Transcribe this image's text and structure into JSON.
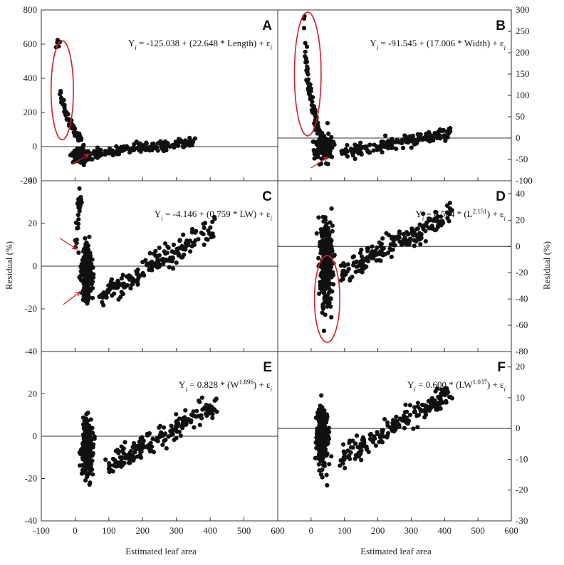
{
  "figure": {
    "x_axis_label": "Estimated leaf area",
    "y_axis_label": "Residual (%)"
  },
  "chart_data": [
    {
      "type": "scatter",
      "panel": "A",
      "equation": {
        "pre": "Y",
        "sub": "i",
        "mid": " = -125.038 + (22.648 * Length) + ε",
        "sup": "",
        "post": "",
        "tail": "i"
      },
      "xlim": [
        -100,
        600
      ],
      "ylim": [
        -200,
        800
      ],
      "x_ticks": [
        "-100",
        "0",
        "100",
        "200",
        "300",
        "400",
        "500"
      ],
      "y_ticks": [
        "-200",
        "0",
        "200",
        "400",
        "600",
        "800"
      ],
      "y_tick_values": [
        -200,
        0,
        200,
        400,
        600,
        800
      ],
      "y_axis_side": "left",
      "show_x_tick_labels": false,
      "annotations": [
        {
          "kind": "ellipse",
          "cx": -38,
          "cy": 330,
          "rx": 33,
          "ry": 290
        },
        {
          "kind": "arrow",
          "from": [
            -10,
            -105
          ],
          "to": [
            40,
            -45
          ]
        }
      ],
      "clusters": [
        {
          "x": [
            -50,
            -50
          ],
          "y": [
            580,
            595
          ],
          "n": 5
        },
        {
          "x": [
            -45,
            15
          ],
          "y": [
            40,
            390
          ],
          "n": 60,
          "curve": true
        },
        {
          "x": 20,
          "y": -50,
          "sx": 18,
          "sy": 28,
          "n": 140
        },
        {
          "x": [
            60,
            350
          ],
          "y": [
            -40,
            25
          ],
          "n": 160,
          "band": 20
        }
      ]
    },
    {
      "type": "scatter",
      "panel": "B",
      "equation": {
        "pre": "Y",
        "sub": "i",
        "mid": " = -91.545 + (17.006 * Width) + ε",
        "sup": "",
        "post": "",
        "tail": "i"
      },
      "xlim": [
        -100,
        600
      ],
      "ylim": [
        -100,
        300
      ],
      "x_ticks": [
        "0",
        "100",
        "200",
        "300",
        "400",
        "500",
        "600"
      ],
      "y_ticks": [
        "-100",
        "-50",
        "0",
        "50",
        "100",
        "150",
        "200",
        "250",
        "300"
      ],
      "y_tick_values": [
        -100,
        -50,
        0,
        50,
        100,
        150,
        200,
        250,
        300
      ],
      "y_axis_side": "right",
      "show_x_tick_labels": false,
      "annotations": [
        {
          "kind": "ellipse",
          "cx": -10,
          "cy": 150,
          "rx": 40,
          "ry": 145
        },
        {
          "kind": "arrow",
          "from": [
            0,
            -70
          ],
          "to": [
            50,
            -45
          ]
        }
      ],
      "clusters": [
        {
          "x": [
            -20,
            -18
          ],
          "y": [
            265,
            280
          ],
          "n": 3
        },
        {
          "x": [
            -18,
            25
          ],
          "y": [
            10,
            245
          ],
          "n": 70,
          "curve": true
        },
        {
          "x": 40,
          "y": -20,
          "sx": 20,
          "sy": 22,
          "n": 130
        },
        {
          "x": [
            90,
            420
          ],
          "y": [
            -35,
            12
          ],
          "n": 170,
          "band": 10
        }
      ]
    },
    {
      "type": "scatter",
      "panel": "C",
      "equation": {
        "pre": "Y",
        "sub": "i",
        "mid": " = -4.146 + (0.759 * LW) + ε",
        "sup": "",
        "post": "",
        "tail": "i"
      },
      "xlim": [
        -100,
        600
      ],
      "ylim": [
        -40,
        40
      ],
      "x_ticks": [
        "-100",
        "0",
        "100",
        "200",
        "300",
        "400",
        "500"
      ],
      "y_ticks": [
        "-40",
        "-20",
        "0",
        "20",
        "40"
      ],
      "y_tick_values": [
        -40,
        -20,
        0,
        20,
        40
      ],
      "y_axis_side": "left",
      "show_x_tick_labels": false,
      "annotations": [
        {
          "kind": "arrow",
          "from": [
            -45,
            13
          ],
          "to": [
            5,
            8
          ]
        },
        {
          "kind": "arrow",
          "from": [
            -35,
            -18
          ],
          "to": [
            15,
            -12
          ]
        }
      ],
      "clusters": [
        {
          "x": [
            2,
            15
          ],
          "y": [
            10,
            36
          ],
          "n": 25
        },
        {
          "x": 35,
          "y": -3,
          "sx": 12,
          "sy": 9,
          "n": 240
        },
        {
          "x": [
            70,
            420
          ],
          "y": [
            -15,
            18
          ],
          "n": 190,
          "band": 0
        }
      ]
    },
    {
      "type": "scatter",
      "panel": "D",
      "equation": {
        "pre": "Y",
        "sub": "i",
        "mid": " = 0.584 * (L",
        "sup": "2.151",
        "post": ") + ε",
        "tail": "i"
      },
      "xlim": [
        -100,
        600
      ],
      "ylim": [
        -80,
        50
      ],
      "x_ticks": [
        "0",
        "100",
        "200",
        "300",
        "400",
        "500",
        "600"
      ],
      "y_ticks": [
        "-80",
        "-60",
        "-40",
        "-20",
        "0",
        "20",
        "40"
      ],
      "y_tick_values": [
        -80,
        -60,
        -40,
        -20,
        0,
        20,
        40
      ],
      "y_axis_side": "right",
      "show_x_tick_labels": false,
      "annotations": [
        {
          "kind": "ellipse",
          "cx": 48,
          "cy": -40,
          "rx": 38,
          "ry": 33
        }
      ],
      "clusters": [
        {
          "x": 45,
          "y": -12,
          "sx": 15,
          "sy": 25,
          "n": 260
        },
        {
          "x": [
            90,
            420
          ],
          "y": [
            -20,
            25
          ],
          "n": 200,
          "band": 0
        }
      ]
    },
    {
      "type": "scatter",
      "panel": "E",
      "equation": {
        "pre": "Y",
        "sub": "i",
        "mid": " = 0.828 * (W",
        "sup": "1.896",
        "post": ") + ε",
        "tail": "i"
      },
      "xlim": [
        -100,
        600
      ],
      "ylim": [
        -40,
        40
      ],
      "x_ticks": [
        "-100",
        "0",
        "100",
        "200",
        "300",
        "400",
        "500",
        "600"
      ],
      "y_ticks": [
        "-40",
        "-20",
        "0",
        "20"
      ],
      "y_tick_values": [
        -40,
        -20,
        0,
        20
      ],
      "y_axis_side": "left",
      "show_x_tick_labels": true,
      "annotations": [],
      "clusters": [
        {
          "x": 35,
          "y": -5,
          "sx": 12,
          "sy": 9,
          "n": 260
        },
        {
          "x": [
            90,
            420
          ],
          "y": [
            -15,
            15
          ],
          "n": 200,
          "band": 0
        }
      ]
    },
    {
      "type": "scatter",
      "panel": "F",
      "equation": {
        "pre": "Y",
        "sub": "i",
        "mid": " = 0.600 * (LW",
        "sup": "1.037",
        "post": ") + ε",
        "tail": "i"
      },
      "xlim": [
        -100,
        600
      ],
      "ylim": [
        -30,
        25
      ],
      "x_ticks": [
        "0",
        "100",
        "200",
        "300",
        "400",
        "500",
        "600"
      ],
      "y_ticks": [
        "-30",
        "-20",
        "-10",
        "0",
        "10",
        "20"
      ],
      "y_tick_values": [
        -30,
        -20,
        -10,
        0,
        10,
        20
      ],
      "y_axis_side": "right",
      "show_x_tick_labels": true,
      "annotations": [],
      "clusters": [
        {
          "x": 35,
          "y": -3,
          "sx": 12,
          "sy": 7,
          "n": 260
        },
        {
          "x": [
            90,
            420
          ],
          "y": [
            -10,
            12
          ],
          "n": 200,
          "band": 0
        }
      ]
    }
  ]
}
